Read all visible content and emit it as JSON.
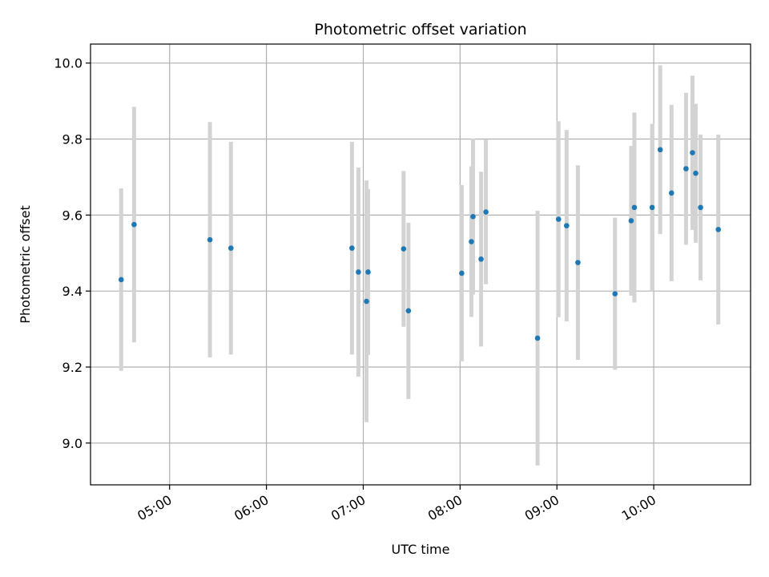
{
  "chart_data": {
    "type": "scatter",
    "title": "Photometric offset variation",
    "xlabel": "UTC time",
    "ylabel": "Photometric offset",
    "x_ticks": [
      "05:00",
      "06:00",
      "07:00",
      "08:00",
      "09:00",
      "10:00"
    ],
    "y_ticks": [
      "9.0",
      "9.2",
      "9.4",
      "9.6",
      "9.8",
      "10.0"
    ],
    "xlim": [
      "04:11",
      "11:00"
    ],
    "ylim": [
      8.89,
      10.05
    ],
    "grid": true,
    "colors": {
      "point": "#1f77b4",
      "errorbar": "#d3d3d3",
      "grid": "#b0b0b0"
    },
    "series": [
      {
        "points": [
          {
            "t": "04:30",
            "y": 9.43,
            "err": 0.24
          },
          {
            "t": "04:38",
            "y": 9.575,
            "err": 0.31
          },
          {
            "t": "05:25",
            "y": 9.535,
            "err": 0.31
          },
          {
            "t": "05:38",
            "y": 9.513,
            "err": 0.28
          },
          {
            "t": "06:53",
            "y": 9.513,
            "err": 0.28
          },
          {
            "t": "06:57",
            "y": 9.45,
            "err": 0.275
          },
          {
            "t": "07:02",
            "y": 9.373,
            "err": 0.318
          },
          {
            "t": "07:03",
            "y": 9.45,
            "err": 0.218
          },
          {
            "t": "07:25",
            "y": 9.511,
            "err": 0.205
          },
          {
            "t": "07:28",
            "y": 9.348,
            "err": 0.232
          },
          {
            "t": "08:01",
            "y": 9.447,
            "err": 0.232
          },
          {
            "t": "08:07",
            "y": 9.53,
            "err": 0.198
          },
          {
            "t": "08:08",
            "y": 9.596,
            "err": 0.205
          },
          {
            "t": "08:13",
            "y": 9.484,
            "err": 0.23
          },
          {
            "t": "08:16",
            "y": 9.608,
            "err": 0.19
          },
          {
            "t": "08:48",
            "y": 9.276,
            "err": 0.335
          },
          {
            "t": "09:01",
            "y": 9.589,
            "err": 0.258
          },
          {
            "t": "09:06",
            "y": 9.572,
            "err": 0.252
          },
          {
            "t": "09:13",
            "y": 9.475,
            "err": 0.256
          },
          {
            "t": "09:36",
            "y": 9.393,
            "err": 0.2
          },
          {
            "t": "09:46",
            "y": 9.585,
            "err": 0.197
          },
          {
            "t": "09:48",
            "y": 9.62,
            "err": 0.25
          },
          {
            "t": "09:59",
            "y": 9.62,
            "err": 0.22
          },
          {
            "t": "10:04",
            "y": 9.772,
            "err": 0.222
          },
          {
            "t": "10:11",
            "y": 9.658,
            "err": 0.232
          },
          {
            "t": "10:20",
            "y": 9.722,
            "err": 0.2
          },
          {
            "t": "10:24",
            "y": 9.764,
            "err": 0.203
          },
          {
            "t": "10:26",
            "y": 9.71,
            "err": 0.183
          },
          {
            "t": "10:29",
            "y": 9.62,
            "err": 0.192
          },
          {
            "t": "10:40",
            "y": 9.562,
            "err": 0.25
          }
        ]
      }
    ]
  }
}
